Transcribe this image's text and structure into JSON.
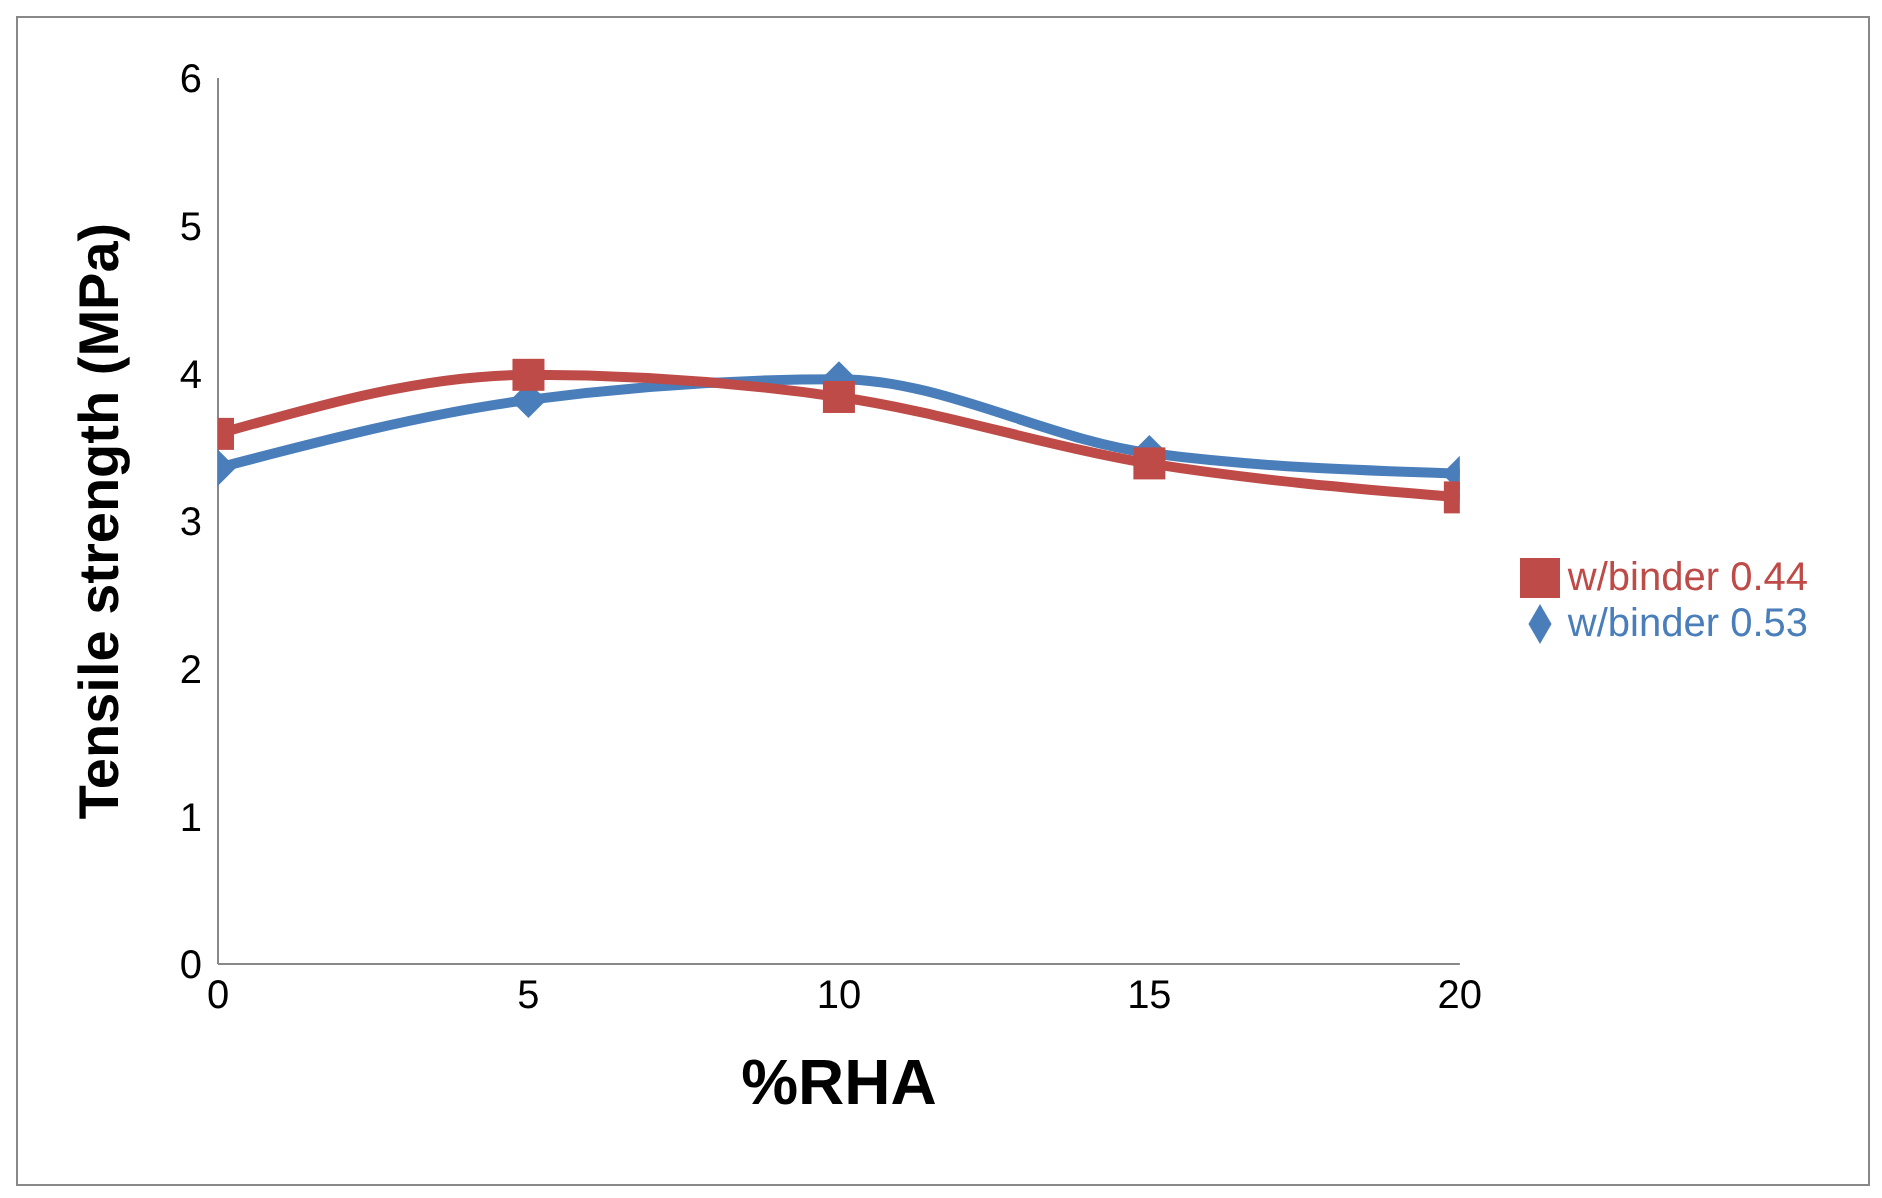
{
  "chart_data": {
    "type": "line",
    "xlabel": "%RHA",
    "ylabel": "Tensile strength (MPa)",
    "x": [
      0,
      5,
      10,
      15,
      20
    ],
    "xlim": [
      0,
      20
    ],
    "xticks": [
      0,
      5,
      10,
      15,
      20
    ],
    "ylim": [
      0,
      6
    ],
    "yticks": [
      0,
      1,
      2,
      3,
      4,
      5,
      6
    ],
    "grid": false,
    "legend": "right",
    "series": [
      {
        "name": "w/binder 0.53",
        "color": "#4a7ebb",
        "marker": "diamond",
        "values": [
          3.36,
          3.82,
          3.96,
          3.46,
          3.32
        ]
      },
      {
        "name": "w/binder 0.44",
        "color": "#be4b48",
        "marker": "square",
        "values": [
          3.59,
          3.99,
          3.84,
          3.39,
          3.16
        ]
      }
    ]
  }
}
